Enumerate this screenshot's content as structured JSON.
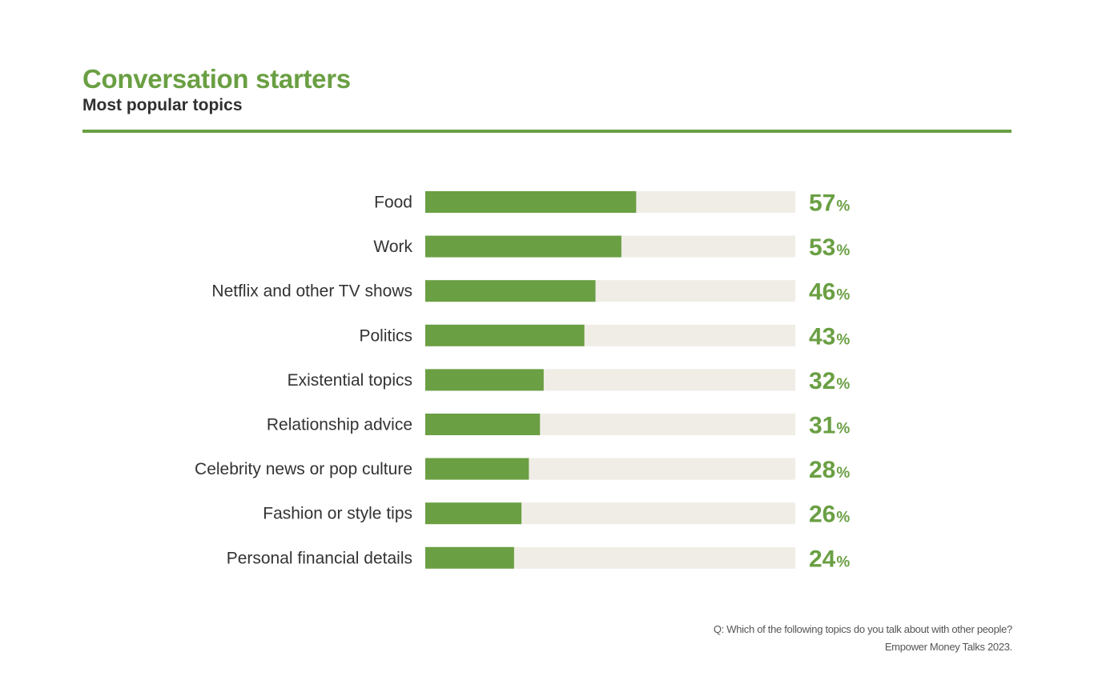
{
  "header": {
    "title": "Conversation starters",
    "subtitle": "Most popular topics"
  },
  "colors": {
    "accent": "#6a9f43",
    "track": "#f0ede6",
    "label": "#333333"
  },
  "chart_data": {
    "type": "bar",
    "orientation": "horizontal",
    "title": "Conversation starters",
    "subtitle": "Most popular topics",
    "categories": [
      "Food",
      "Work",
      "Netflix and other TV shows",
      "Politics",
      "Existential topics",
      "Relationship advice",
      "Celebrity news or pop culture",
      "Fashion or style tips",
      "Personal financial details"
    ],
    "values": [
      57,
      53,
      46,
      43,
      32,
      31,
      28,
      26,
      24
    ],
    "value_suffix": "%",
    "xlim": [
      0,
      100
    ],
    "xlabel": "",
    "ylabel": "",
    "grid": false
  },
  "footnote": {
    "question": "Q: Which of the following topics do you talk about with other people?",
    "source": "Empower Money Talks 2023."
  }
}
